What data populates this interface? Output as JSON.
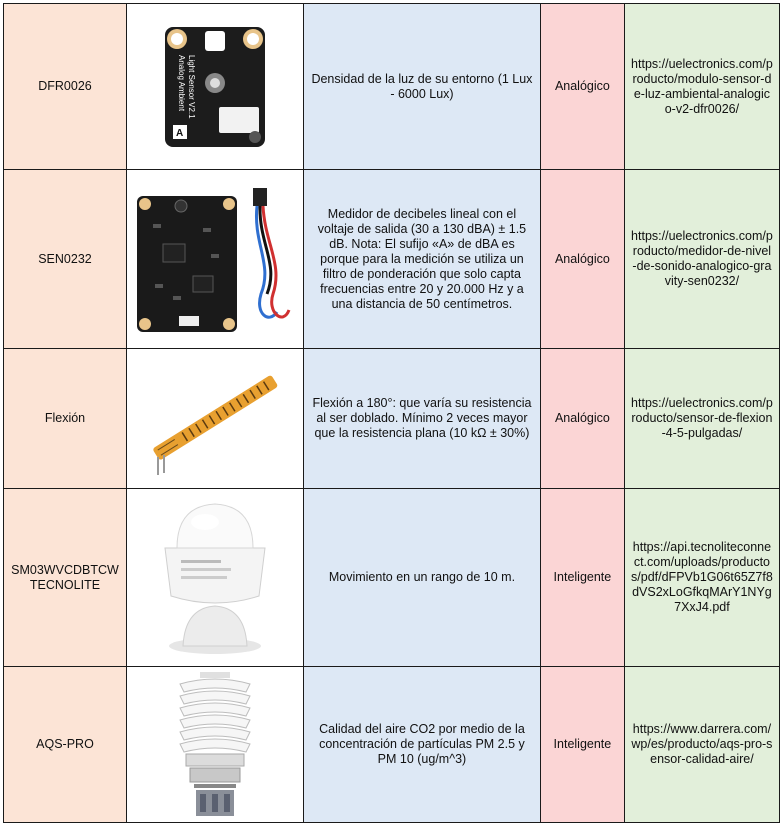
{
  "rows": [
    {
      "model": "DFR0026",
      "image": "analog-ambient-light-sensor-board",
      "board_text": [
        "Analog Ambient",
        "Light Sensor V2.1"
      ],
      "board_letter": "A",
      "description": "Densidad de la luz de su entorno (1 Lux - 6000 Lux)",
      "type": "Analógico",
      "link": "https://uelectronics.com/producto/modulo-sensor-de-luz-ambiental-analogico-v2-dfr0026/"
    },
    {
      "model": "SEN0232",
      "image": "sound-level-meter-board-with-cable",
      "description": "Medidor de decibeles lineal con el voltaje de salida (30 a 130 dBA) ± 1.5 dB. Nota: El sufijo «A» de dBA es porque para la medición se utiliza un filtro de ponderación que solo capta frecuencias entre 20 y 20.000 Hz y a una distancia de 50 centímetros.",
      "type": "Analógico",
      "link": "https://uelectronics.com/producto/medidor-de-nivel-de-sonido-analogico-gravity-sen0232/"
    },
    {
      "model": "Flexión",
      "image": "flex-sensor-strip",
      "description": "Flexión a 180°: que varía su resistencia al ser doblado. Mínimo 2 veces mayor que la resistencia plana (10 kΩ ± 30%)",
      "type": "Analógico",
      "link": "https://uelectronics.com/producto/sensor-de-flexion-4-5-pulgadas/"
    },
    {
      "model": "SM03WVCDBTCW TECNOLITE",
      "image": "motion-sensor-dome",
      "description": "Movimiento en un rango de 10 m.",
      "type": "Inteligente",
      "link": "https://api.tecnoliteconnect.com/uploads/productos/pdf/dFPVb1G06t65Z7f8dVS2xLoGfkqMArY1NYg7XxJ4.pdf"
    },
    {
      "model": "AQS-PRO",
      "image": "air-quality-sensor-radiation-shield",
      "description": "Calidad del aire CO2 por medio de la concentración de partículas PM 2.5 y PM 10 (ug/m^3)",
      "type": "Inteligente",
      "link": "https://www.darrera.com/wp/es/producto/aqs-pro-sensor-calidad-aire/"
    }
  ]
}
